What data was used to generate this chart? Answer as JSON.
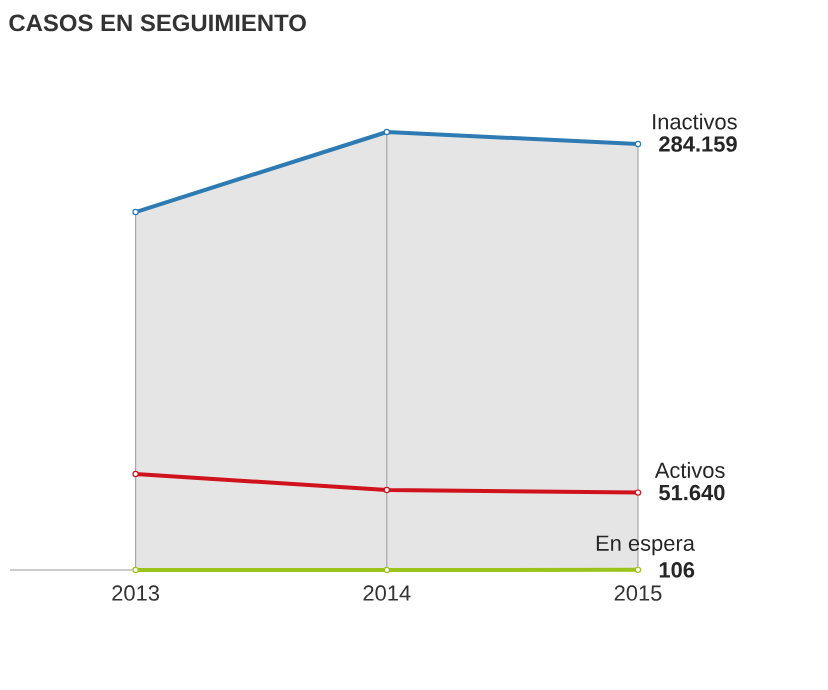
{
  "chart_data": {
    "type": "line",
    "title": "CASOS EN SEGUIMIENTO",
    "categories": [
      "2013",
      "2014",
      "2015"
    ],
    "ylim": [
      0,
      292200
    ],
    "grid": "x",
    "marker": "circle",
    "series": [
      {
        "name": "Inactivos",
        "color": "#2e7bb3",
        "values": [
          238800,
          292200,
          284159
        ],
        "value_labels": [
          null,
          null,
          "284.159"
        ]
      },
      {
        "name": "Activos",
        "color": "#d0121d",
        "values": [
          64000,
          53400,
          51640
        ],
        "value_labels": [
          null,
          null,
          "51.640"
        ]
      },
      {
        "name": "En espera",
        "color": "#9bc31c",
        "values": [
          0,
          0,
          106
        ],
        "value_labels": [
          null,
          null,
          "106"
        ]
      }
    ]
  }
}
